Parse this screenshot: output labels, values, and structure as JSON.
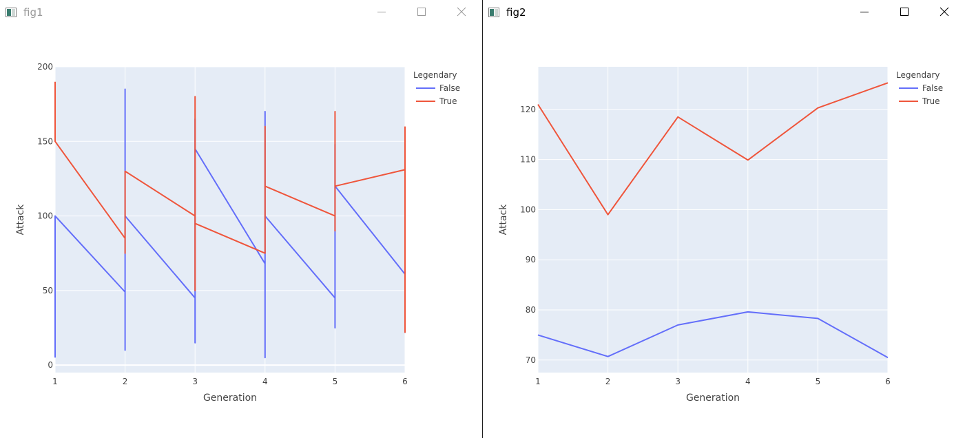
{
  "windows": [
    {
      "title": "fig1",
      "active": false
    },
    {
      "title": "fig2",
      "active": true
    }
  ],
  "chart_data": [
    {
      "type": "line",
      "title": "",
      "xlabel": "Generation",
      "ylabel": "Attack",
      "xlim": [
        1,
        6
      ],
      "ylim": [
        -5,
        200
      ],
      "xticks": [
        1,
        2,
        3,
        4,
        5,
        6
      ],
      "yticks": [
        0,
        50,
        100,
        150,
        200
      ],
      "grid": true,
      "legend_title": "Legendary",
      "legend_position": "top-right",
      "series": [
        {
          "name": "False",
          "color": "#636efa",
          "x": [
            1,
            1,
            2,
            2,
            2,
            2,
            3,
            3,
            3,
            3,
            4,
            4,
            4,
            4,
            5,
            5,
            5,
            5,
            6,
            6,
            6
          ],
          "y": [
            5,
            100,
            49,
            10,
            185,
            100,
            45,
            15,
            165,
            145,
            68,
            5,
            170,
            100,
            45,
            25,
            148,
            120,
            61,
            22,
            100
          ]
        },
        {
          "name": "True",
          "color": "#ef553b",
          "x": [
            1,
            1,
            2,
            2,
            2,
            2,
            3,
            3,
            3,
            3,
            4,
            4,
            4,
            4,
            5,
            5,
            5,
            5,
            6,
            6,
            6
          ],
          "y": [
            190,
            150,
            85,
            75,
            130,
            130,
            100,
            50,
            180,
            95,
            75,
            75,
            160,
            120,
            100,
            90,
            170,
            120,
            131,
            22,
            160
          ]
        }
      ]
    },
    {
      "type": "line",
      "title": "",
      "xlabel": "Generation",
      "ylabel": "Attack",
      "xlim": [
        1,
        6
      ],
      "ylim": [
        67.5,
        128.5
      ],
      "xticks": [
        1,
        2,
        3,
        4,
        5,
        6
      ],
      "yticks": [
        70,
        80,
        90,
        100,
        110,
        120
      ],
      "grid": true,
      "legend_title": "Legendary",
      "legend_position": "top-right",
      "series": [
        {
          "name": "False",
          "color": "#636efa",
          "x": [
            1,
            2,
            3,
            4,
            5,
            6
          ],
          "y": [
            75.0,
            70.7,
            77.0,
            79.6,
            78.3,
            70.5
          ]
        },
        {
          "name": "True",
          "color": "#ef553b",
          "x": [
            1,
            2,
            3,
            4,
            5,
            6
          ],
          "y": [
            121.0,
            99.0,
            118.5,
            109.9,
            120.3,
            125.3
          ]
        }
      ]
    }
  ]
}
